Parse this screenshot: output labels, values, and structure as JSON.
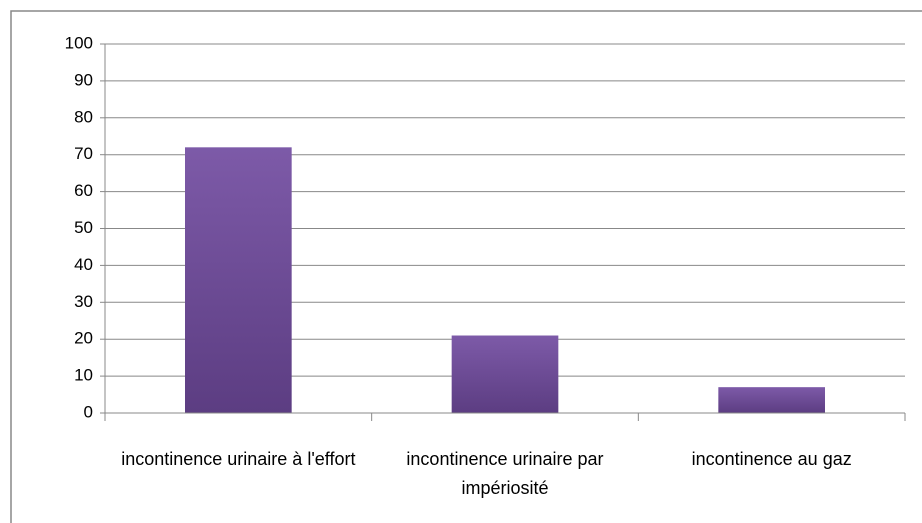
{
  "chart_data": {
    "type": "bar",
    "categories": [
      "incontinence urinaire à l'effort",
      "incontinence urinaire par impériosité",
      "incontinence au gaz"
    ],
    "values": [
      72,
      21,
      7
    ],
    "color": "#6e4b98",
    "ylim": [
      0,
      100
    ],
    "yticks": [
      0,
      10,
      20,
      30,
      40,
      50,
      60,
      70,
      80,
      90,
      100
    ],
    "grid": true
  }
}
